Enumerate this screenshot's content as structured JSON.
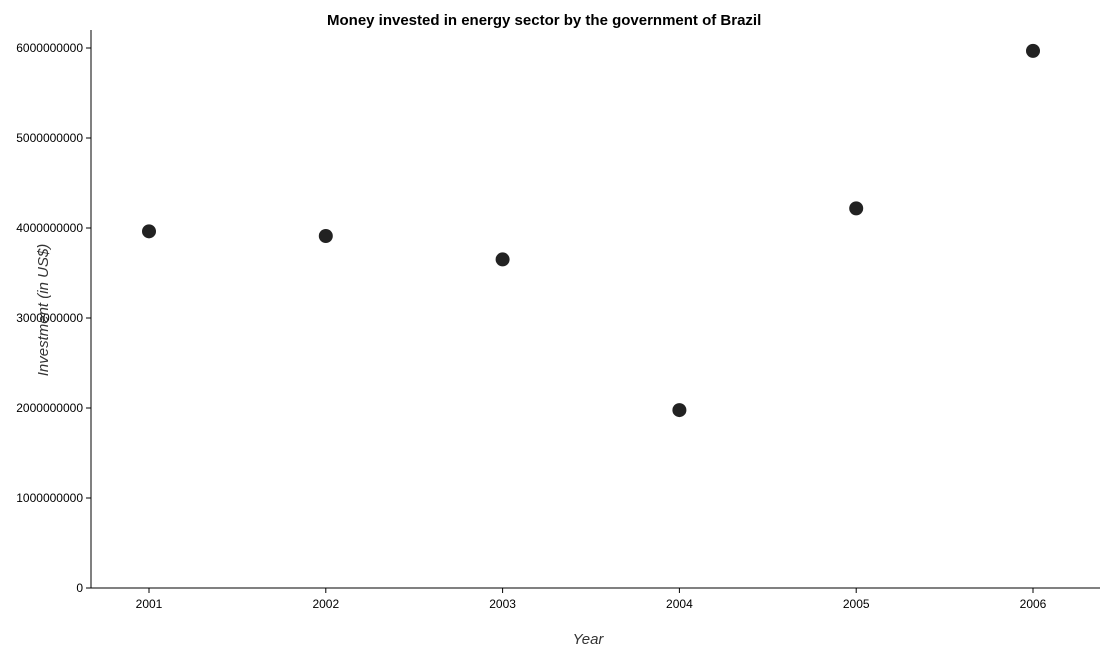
{
  "chart_data": {
    "type": "scatter",
    "title": "Money invested in energy sector by the government of Brazil",
    "xlabel": "Year",
    "ylabel": "Investment (in US$)",
    "categories": [
      "2001",
      "2002",
      "2003",
      "2004",
      "2005",
      "2006"
    ],
    "values": [
      3963000000,
      3911000000,
      3651000000,
      1977000000,
      4218000000,
      5968000000
    ],
    "ylim": [
      0,
      6100000000
    ],
    "yticks": [
      0,
      1000000000,
      2000000000,
      3000000000,
      4000000000,
      5000000000,
      6000000000
    ],
    "ytick_labels": [
      "0",
      "1000000000",
      "2000000000",
      "3000000000",
      "4000000000",
      "5000000000",
      "6000000000"
    ],
    "grid": false,
    "point_color": "#222222"
  }
}
